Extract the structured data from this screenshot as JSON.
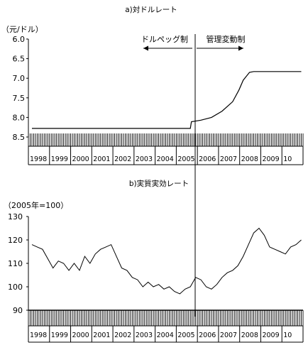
{
  "chart_data": [
    {
      "type": "line",
      "title": "a)対ドルレート",
      "ylabel": "（元/ドル）",
      "y_inverted": true,
      "ylim": [
        6.0,
        8.5
      ],
      "yticks": [
        "6.0",
        "6.5",
        "7.0",
        "7.5",
        "8.0",
        "8.5"
      ],
      "xticks": [
        "1998",
        "1999",
        "2000",
        "2001",
        "2002",
        "2003",
        "2004",
        "2005",
        "2006",
        "2007",
        "2008",
        "2009",
        "10"
      ],
      "annotations": {
        "left": "ドルペッグ制",
        "right": "管理変動制"
      },
      "series": [
        {
          "x": [
            1998.0,
            2005.5,
            2005.55,
            2006.0,
            2006.5,
            2007.0,
            2007.5,
            2007.8,
            2008.0,
            2008.3,
            2008.5,
            2010.75
          ],
          "values": [
            8.28,
            8.28,
            8.11,
            8.07,
            8.0,
            7.84,
            7.6,
            7.3,
            7.05,
            6.85,
            6.83,
            6.83
          ]
        }
      ]
    },
    {
      "type": "line",
      "title": "b)実質実効レート",
      "ylabel": "（2005年=100）",
      "ylim": [
        90,
        130
      ],
      "yticks": [
        "90",
        "100",
        "110",
        "120",
        "130"
      ],
      "xticks": [
        "1998",
        "1999",
        "2000",
        "2001",
        "2002",
        "2003",
        "2004",
        "2005",
        "2006",
        "2007",
        "2008",
        "2009",
        "10"
      ],
      "series": [
        {
          "x": [
            1998.0,
            1998.25,
            1998.5,
            1998.75,
            1999.0,
            1999.25,
            1999.5,
            1999.75,
            2000.0,
            2000.25,
            2000.5,
            2000.75,
            2001.0,
            2001.25,
            2001.5,
            2001.75,
            2002.0,
            2002.25,
            2002.5,
            2002.75,
            2003.0,
            2003.25,
            2003.5,
            2003.75,
            2004.0,
            2004.25,
            2004.5,
            2004.75,
            2005.0,
            2005.25,
            2005.5,
            2005.75,
            2006.0,
            2006.25,
            2006.5,
            2006.75,
            2007.0,
            2007.25,
            2007.5,
            2007.75,
            2008.0,
            2008.25,
            2008.5,
            2008.75,
            2009.0,
            2009.25,
            2009.5,
            2009.75,
            2010.0,
            2010.25,
            2010.5,
            2010.75
          ],
          "values": [
            118,
            117,
            116,
            112,
            108,
            111,
            110,
            107,
            110,
            107,
            113,
            110,
            114,
            116,
            117,
            118,
            113,
            108,
            107,
            104,
            103,
            100,
            102,
            100,
            101,
            99,
            100,
            98,
            97,
            99,
            100,
            104,
            103,
            100,
            99,
            101,
            104,
            106,
            107,
            109,
            113,
            118,
            123,
            125,
            122,
            117,
            116,
            115,
            114,
            117,
            118,
            120
          ]
        }
      ]
    }
  ]
}
